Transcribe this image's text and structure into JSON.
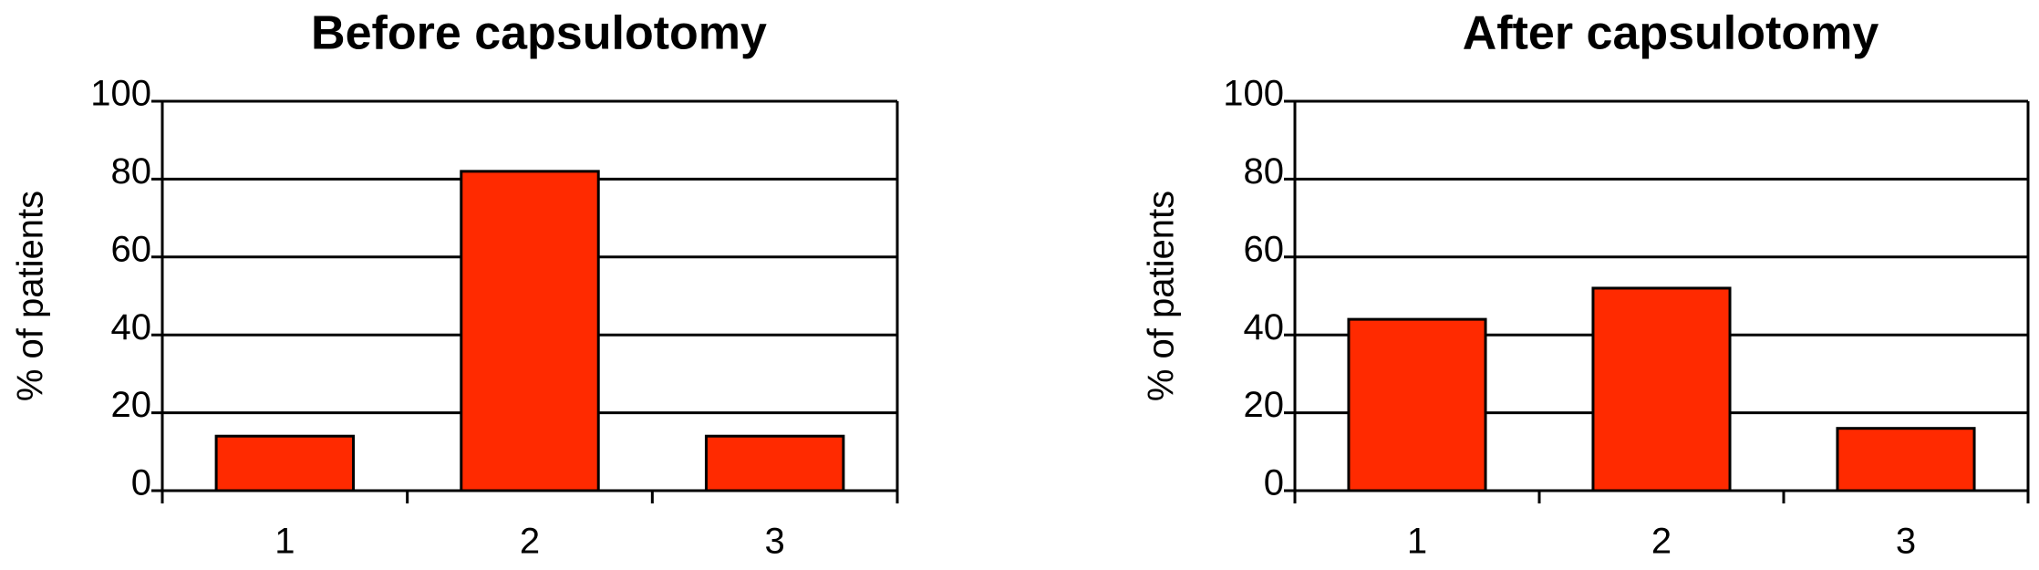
{
  "chart_data": [
    {
      "type": "bar",
      "title": "Before capsulotomy",
      "ylabel": "% of patients",
      "categories": [
        "1",
        "2",
        "3"
      ],
      "values": [
        14,
        82,
        14
      ],
      "color": "#ff2a00",
      "ylim": [
        0,
        100
      ],
      "yticks": [
        0,
        20,
        40,
        60,
        80,
        100
      ],
      "grid": true
    },
    {
      "type": "bar",
      "title": "After capsulotomy",
      "ylabel": "% of patients",
      "categories": [
        "1",
        "2",
        "3"
      ],
      "values": [
        44,
        52,
        16
      ],
      "color": "#ff2a00",
      "ylim": [
        0,
        100
      ],
      "yticks": [
        0,
        20,
        40,
        60,
        80,
        100
      ],
      "grid": true
    }
  ]
}
